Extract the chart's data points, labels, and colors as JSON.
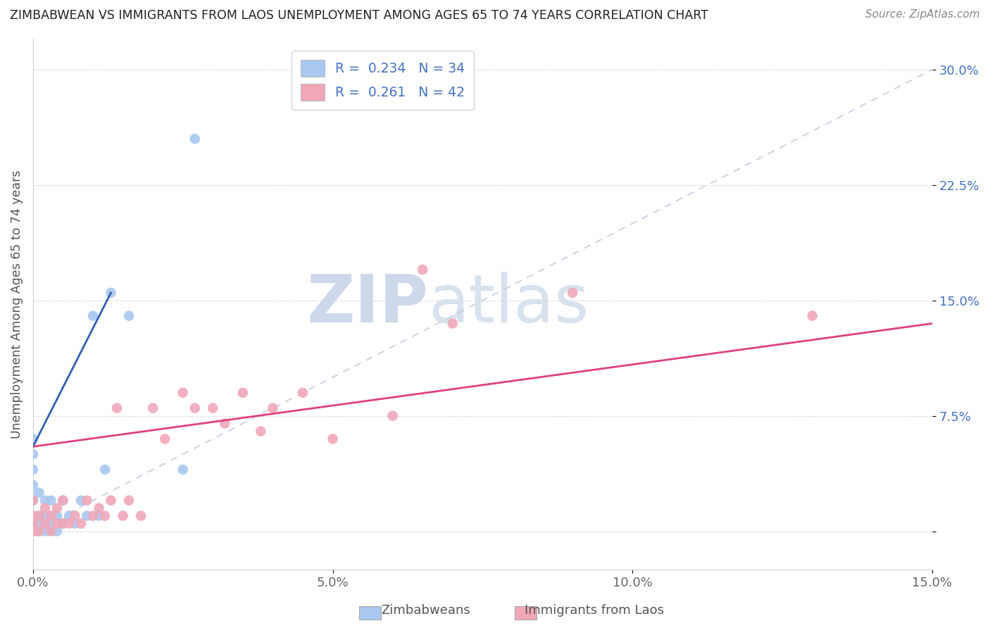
{
  "title": "ZIMBABWEAN VS IMMIGRANTS FROM LAOS UNEMPLOYMENT AMONG AGES 65 TO 74 YEARS CORRELATION CHART",
  "source": "Source: ZipAtlas.com",
  "ylabel": "Unemployment Among Ages 65 to 74 years",
  "xlim": [
    0.0,
    0.15
  ],
  "ylim": [
    -0.025,
    0.32
  ],
  "x_ticks": [
    0.0,
    0.05,
    0.1,
    0.15
  ],
  "x_tick_labels": [
    "0.0%",
    "5.0%",
    "10.0%",
    "15.0%"
  ],
  "y_ticks": [
    0.0,
    0.075,
    0.15,
    0.225,
    0.3
  ],
  "y_tick_labels": [
    "",
    "7.5%",
    "15.0%",
    "22.5%",
    "30.0%"
  ],
  "color_zimbabwean": "#a8c8f0",
  "color_laos": "#f0a8b8",
  "color_line_zimbabwean": "#3060b0",
  "color_line_laos": "#e04080",
  "color_dashed": "#b8c4d8",
  "background_color": "#ffffff",
  "zimbabwean_x": [
    0.0,
    0.0,
    0.0,
    0.0,
    0.0,
    0.0,
    0.0,
    0.0,
    0.001,
    0.001,
    0.001,
    0.001,
    0.002,
    0.002,
    0.002,
    0.003,
    0.003,
    0.003,
    0.003,
    0.004,
    0.004,
    0.005,
    0.005,
    0.006,
    0.007,
    0.008,
    0.009,
    0.01,
    0.011,
    0.012,
    0.013,
    0.016,
    0.025,
    0.027
  ],
  "zimbabwean_y": [
    0.0,
    0.005,
    0.01,
    0.02,
    0.03,
    0.04,
    0.05,
    0.06,
    0.0,
    0.005,
    0.01,
    0.025,
    0.0,
    0.01,
    0.02,
    0.0,
    0.005,
    0.01,
    0.02,
    0.0,
    0.01,
    0.005,
    0.02,
    0.01,
    0.005,
    0.02,
    0.01,
    0.14,
    0.01,
    0.04,
    0.155,
    0.14,
    0.04,
    0.255
  ],
  "laos_x": [
    0.0,
    0.0,
    0.0,
    0.0,
    0.001,
    0.001,
    0.002,
    0.002,
    0.003,
    0.003,
    0.004,
    0.004,
    0.005,
    0.005,
    0.006,
    0.007,
    0.008,
    0.009,
    0.01,
    0.011,
    0.012,
    0.013,
    0.014,
    0.015,
    0.016,
    0.018,
    0.02,
    0.022,
    0.025,
    0.027,
    0.03,
    0.032,
    0.035,
    0.038,
    0.04,
    0.045,
    0.05,
    0.06,
    0.065,
    0.07,
    0.09,
    0.13
  ],
  "laos_y": [
    0.0,
    0.005,
    0.01,
    0.02,
    0.0,
    0.01,
    0.005,
    0.015,
    0.0,
    0.01,
    0.005,
    0.015,
    0.005,
    0.02,
    0.005,
    0.01,
    0.005,
    0.02,
    0.01,
    0.015,
    0.01,
    0.02,
    0.08,
    0.01,
    0.02,
    0.01,
    0.08,
    0.06,
    0.09,
    0.08,
    0.08,
    0.07,
    0.09,
    0.065,
    0.08,
    0.09,
    0.06,
    0.075,
    0.17,
    0.135,
    0.155,
    0.14
  ],
  "zim_line_x": [
    0.0,
    0.013
  ],
  "zim_line_y": [
    0.055,
    0.155
  ],
  "laos_line_x": [
    0.0,
    0.15
  ],
  "laos_line_y": [
    0.055,
    0.135
  ]
}
